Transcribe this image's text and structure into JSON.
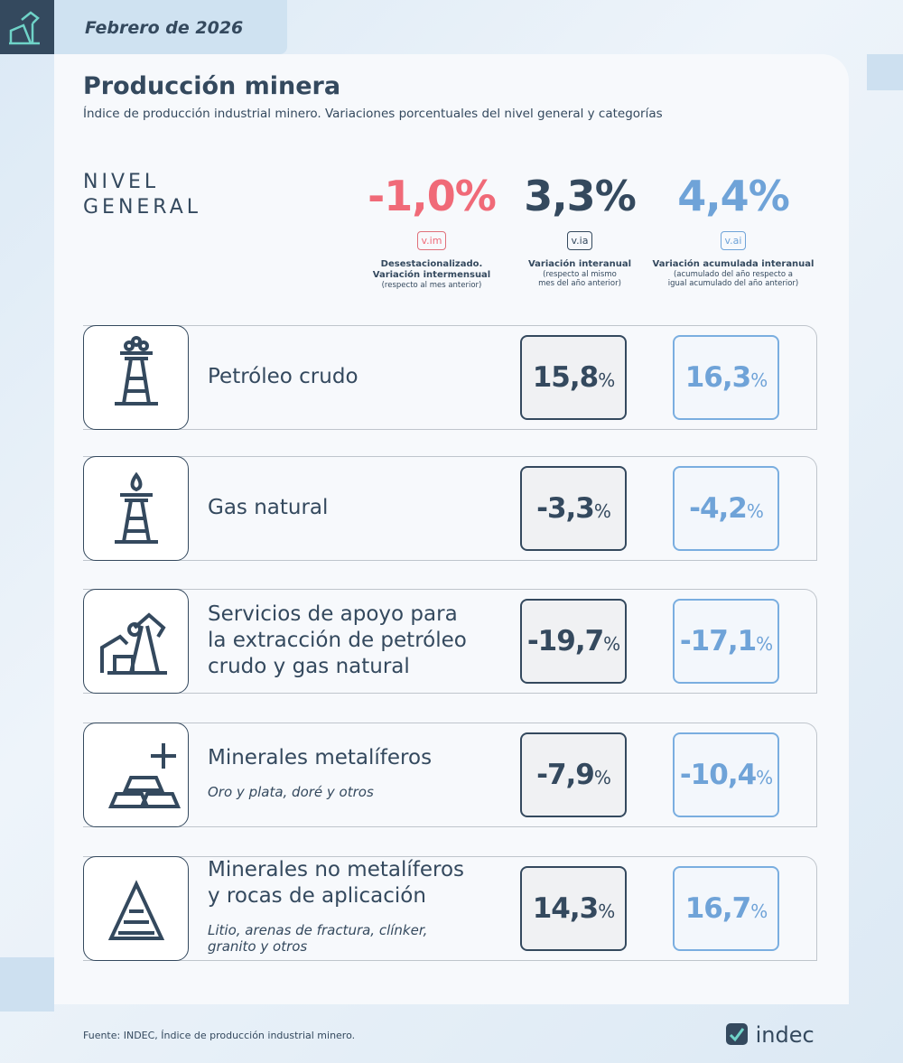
{
  "header": {
    "date": "Febrero de 2026",
    "title": "Producción minera",
    "subtitle": "Índice de producción industrial minero. Variaciones porcentuales del nivel general y categorías"
  },
  "general": {
    "label_lines": [
      "NIVEL",
      "GENERAL"
    ],
    "indicators": [
      {
        "value": "-1,0%",
        "badge": "v.im",
        "title_lines": [
          "Desestacionalizado.",
          "Variación intermensual"
        ],
        "note_lines": [
          "(respecto al mes anterior)"
        ]
      },
      {
        "value": "3,3%",
        "badge": "v.ia",
        "title_lines": [
          "Variación interanual"
        ],
        "note_lines": [
          "(respecto al mismo",
          "mes del año anterior)"
        ]
      },
      {
        "value": "4,4%",
        "badge": "v.ai",
        "title_lines": [
          "Variación acumulada interanual"
        ],
        "note_lines": [
          "(acumulado del año respecto a",
          "igual acumulado del año anterior)"
        ]
      }
    ]
  },
  "unit": "%",
  "rows": [
    {
      "name_lines": [
        "Petróleo crudo"
      ],
      "detail_lines": [],
      "via": "15,8",
      "vai": "16,3"
    },
    {
      "name_lines": [
        "Gas natural"
      ],
      "detail_lines": [],
      "via": "-3,3",
      "vai": "-4,2"
    },
    {
      "name_lines": [
        "Servicios de apoyo para",
        "la extracción de petróleo",
        "crudo y gas natural"
      ],
      "detail_lines": [],
      "via": "-19,7",
      "vai": "-17,1"
    },
    {
      "name_lines": [
        "Minerales metalíferos"
      ],
      "detail_lines": [
        "Oro y plata, doré y otros"
      ],
      "via": "-7,9",
      "vai": "-10,4"
    },
    {
      "name_lines": [
        "Minerales no metalíferos",
        "y rocas de aplicación"
      ],
      "detail_lines": [
        "Litio, arenas de fractura, clínker,",
        "granito y otros"
      ],
      "via": "14,3",
      "vai": "16,7"
    }
  ],
  "footer": {
    "source": "Fuente: INDEC, Índice de producción industrial minero.",
    "logo": "indec"
  }
}
